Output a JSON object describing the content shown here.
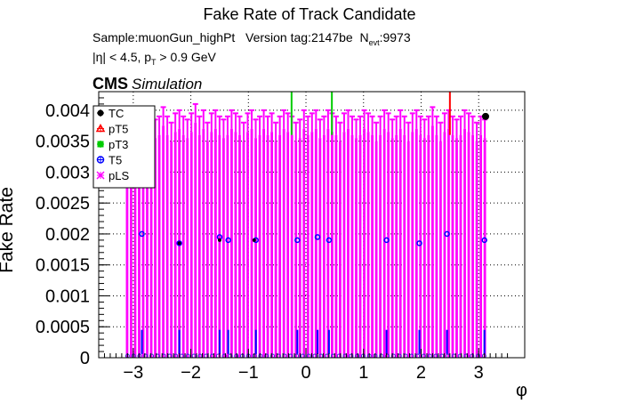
{
  "chart_data": {
    "type": "bar",
    "title": "Fake Rate of Track Candidate",
    "subtitle_sample": "Sample:muonGun_highPt",
    "subtitle_version": "Version tag:2147be",
    "subtitle_nevt_label": "N",
    "subtitle_nevt_sub": "evt",
    "subtitle_nevt_value": ":9973",
    "cuts_eta": "|η| < 4.5, p",
    "cuts_pt_sub": "T",
    "cuts_pt": " > 0.9 GeV",
    "cms_label": "CMS",
    "cms_simulation": "Simulation",
    "xlabel": "φ",
    "ylabel": "Fake Rate",
    "xlim": [
      -3.6,
      3.8
    ],
    "ylim": [
      0,
      0.0043
    ],
    "grid": true,
    "legend_placement": "top-left",
    "x_ticks": [
      -3,
      -2,
      -1,
      0,
      1,
      2,
      3
    ],
    "x_tick_labels": [
      "−3",
      "−2",
      "−1",
      "0",
      "1",
      "2",
      "3"
    ],
    "y_ticks": [
      0,
      0.0005,
      0.001,
      0.0015,
      0.002,
      0.0025,
      0.003,
      0.0035,
      0.004
    ],
    "y_tick_labels": [
      "0",
      "0.0005",
      "0.001",
      "0.0015",
      "0.002",
      "0.0025",
      "0.003",
      "0.0035",
      "0.004"
    ],
    "series": [
      {
        "name": "TC",
        "color": "#000000",
        "marker": "circle",
        "x": [
          -2.2,
          -1.5,
          -0.9,
          3.12
        ],
        "y": [
          0.00185,
          0.0019,
          0.0019,
          0.0039
        ]
      },
      {
        "name": "pT5",
        "color": "#ff0000",
        "marker": "triangle",
        "x": [
          2.5
        ],
        "y": [
          0.0043
        ]
      },
      {
        "name": "pT3",
        "color": "#00cc00",
        "marker": "cross",
        "x": [
          -0.25,
          0.45
        ],
        "y": [
          0.0043,
          0.0043
        ]
      },
      {
        "name": "T5",
        "color": "#0000ff",
        "marker": "circle-open",
        "x": [
          -2.85,
          -2.2,
          -1.5,
          -1.35,
          -0.87,
          -0.15,
          0.2,
          0.4,
          1.4,
          1.97,
          2.45,
          3.1
        ],
        "y": [
          0.002,
          0.00185,
          0.00195,
          0.0019,
          0.0019,
          0.0019,
          0.00195,
          0.0019,
          0.0019,
          0.00185,
          0.002,
          0.0019
        ]
      },
      {
        "name": "pLS",
        "color": "#ff00ff",
        "marker": "star",
        "bin_range": [
          -3.14159,
          3.14159
        ],
        "n_bins": 90,
        "values": [
          0.00355,
          0.00345,
          0.0035,
          0.00365,
          0.0036,
          0.0037,
          0.0035,
          0.00355,
          0.0036,
          0.00375,
          0.0036,
          0.0035,
          0.00365,
          0.0037,
          0.0036,
          0.00355,
          0.00365,
          0.0038,
          0.0036,
          0.0037,
          0.0035,
          0.00365,
          0.0037,
          0.0036,
          0.00355,
          0.0036,
          0.0037,
          0.00365,
          0.0036,
          0.0035,
          0.00365,
          0.0037,
          0.00355,
          0.0036,
          0.0037,
          0.0036,
          0.00365,
          0.0035,
          0.0036,
          0.0037,
          0.00365,
          0.0036,
          0.0035,
          0.00355,
          0.0037,
          0.0036,
          0.00365,
          0.0037,
          0.00355,
          0.0036,
          0.0037,
          0.00365,
          0.0036,
          0.0035,
          0.00365,
          0.0037,
          0.0036,
          0.00355,
          0.0036,
          0.0037,
          0.00365,
          0.0036,
          0.0035,
          0.0036,
          0.0037,
          0.00365,
          0.00355,
          0.0036,
          0.0037,
          0.0036,
          0.0035,
          0.00365,
          0.0037,
          0.0036,
          0.00355,
          0.0036,
          0.00375,
          0.0036,
          0.0035,
          0.00365,
          0.0037,
          0.0036,
          0.00355,
          0.0036,
          0.0037,
          0.00365,
          0.0036,
          0.0035,
          0.0036,
          0.00355
        ],
        "err": 0.0003
      }
    ]
  }
}
